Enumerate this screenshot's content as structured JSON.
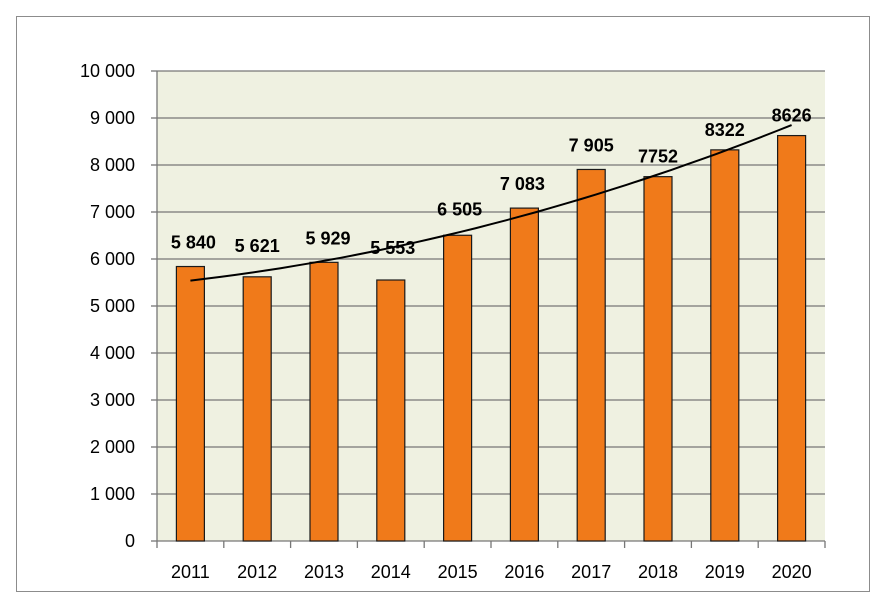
{
  "chart_data": {
    "type": "bar",
    "title": "",
    "xlabel": "",
    "ylabel": "",
    "categories": [
      "2011",
      "2012",
      "2013",
      "2014",
      "2015",
      "2016",
      "2017",
      "2018",
      "2019",
      "2020"
    ],
    "values": [
      5840,
      5621,
      5929,
      5553,
      6505,
      7083,
      7905,
      7752,
      8322,
      8626
    ],
    "data_labels": [
      "5 840",
      "5 621",
      "5 929",
      "5 553",
      "6 505",
      "7 083",
      "7 905",
      "7752",
      "8322",
      "8626"
    ],
    "ylim": [
      0,
      10000
    ],
    "y_ticks": [
      0,
      1000,
      2000,
      3000,
      4000,
      5000,
      6000,
      7000,
      8000,
      9000,
      10000
    ],
    "y_tick_labels": [
      "0",
      "1 000",
      "2 000",
      "3 000",
      "4 000",
      "5 000",
      "6 000",
      "7 000",
      "8 000",
      "9 000",
      "10 000"
    ],
    "grid": true,
    "legend": "none",
    "trendline": {
      "type": "polynomial",
      "start_value": 5540,
      "end_value": 8850
    },
    "colors": {
      "bar_fill": "#f07a1a",
      "bar_stroke": "#1a1a1a",
      "plot_background": "#eff1e1",
      "gridline": "#777777",
      "trendline": "#000000"
    }
  }
}
